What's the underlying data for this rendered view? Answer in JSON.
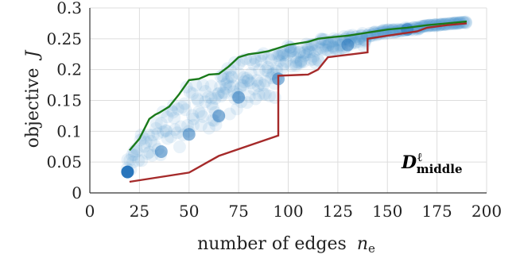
{
  "chart_data": {
    "type": "scatter",
    "xlabel": "number of edges",
    "xlabel_sym": "n",
    "xlabel_sub": "e",
    "ylabel": "objective",
    "ylabel_sym": "J",
    "xlim": [
      0,
      200
    ],
    "ylim": [
      0,
      0.3
    ],
    "xticks": [
      0,
      25,
      50,
      75,
      100,
      125,
      150,
      175,
      200
    ],
    "yticks": [
      0,
      0.05,
      0.1,
      0.15,
      0.2,
      0.25,
      0.3
    ],
    "ytick_labels": [
      "0",
      "0.05",
      "0.1",
      "0.15",
      "0.2",
      "0.25",
      "0.3"
    ],
    "grid": true,
    "annotation": {
      "main": "D",
      "sup": "ℓ",
      "sub": "middle"
    },
    "colors": {
      "scatter": "#4a90d0",
      "highlight": "#1f6fb8",
      "upper": "#1a7a1a",
      "lower": "#a52a2a",
      "grid": "#dddddd"
    },
    "series": [
      {
        "name": "upper",
        "x": [
          20,
          25,
          30,
          33,
          35,
          40,
          45,
          50,
          55,
          60,
          65,
          70,
          75,
          80,
          85,
          90,
          95,
          100,
          110,
          115,
          120,
          130,
          140,
          150,
          160,
          170,
          180,
          190
        ],
        "y": [
          0.069,
          0.088,
          0.12,
          0.127,
          0.13,
          0.14,
          0.16,
          0.183,
          0.185,
          0.192,
          0.193,
          0.205,
          0.22,
          0.225,
          0.227,
          0.23,
          0.235,
          0.24,
          0.245,
          0.25,
          0.252,
          0.255,
          0.26,
          0.265,
          0.268,
          0.272,
          0.275,
          0.278
        ]
      },
      {
        "name": "lower",
        "x": [
          20,
          50,
          65,
          95,
          95,
          110,
          115,
          120,
          140,
          140,
          150,
          165,
          170,
          180,
          190
        ],
        "y": [
          0.018,
          0.033,
          0.06,
          0.093,
          0.19,
          0.192,
          0.2,
          0.22,
          0.228,
          0.25,
          0.255,
          0.262,
          0.268,
          0.272,
          0.275
        ]
      }
    ],
    "highlight_points": {
      "x": [
        19,
        36,
        50,
        65,
        75,
        95,
        130,
        160
      ],
      "y": [
        0.034,
        0.067,
        0.095,
        0.125,
        0.155,
        0.185,
        0.24,
        0.265
      ]
    }
  }
}
